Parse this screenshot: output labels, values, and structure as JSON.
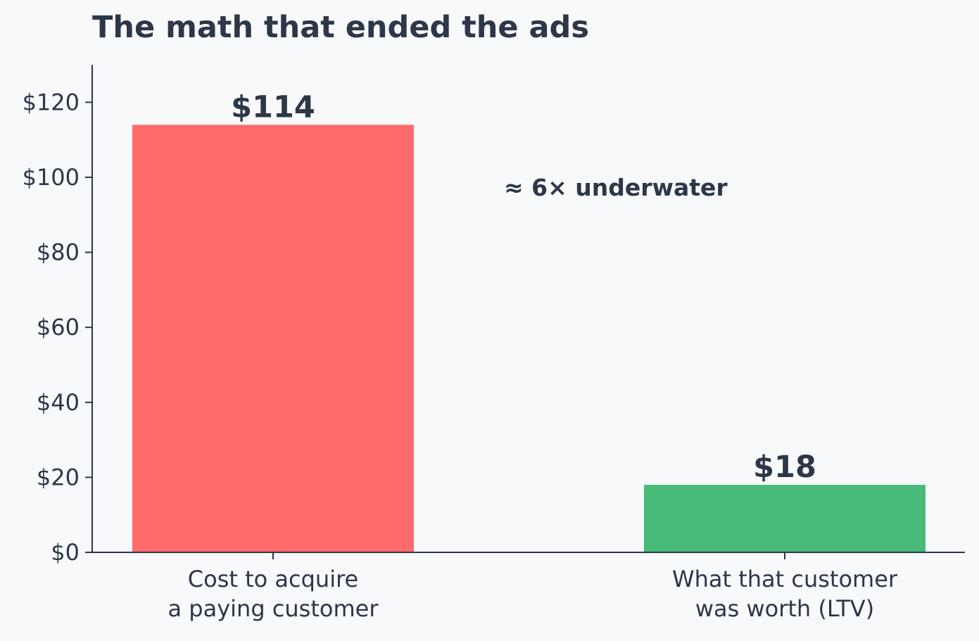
{
  "chart_data": {
    "type": "bar",
    "title": "The math that ended the ads",
    "categories": [
      [
        "Cost to acquire",
        "a paying customer"
      ],
      [
        "What that customer",
        "was worth (LTV)"
      ]
    ],
    "values": [
      114,
      18
    ],
    "value_labels": [
      "$114",
      "$18"
    ],
    "bar_colors": [
      "#ff6b6b",
      "#48bb78"
    ],
    "ylim": [
      0,
      130
    ],
    "yticks": [
      0,
      20,
      40,
      60,
      80,
      100,
      120
    ],
    "ytick_labels": [
      "$0",
      "$20",
      "$40",
      "$60",
      "$80",
      "$100",
      "$120"
    ],
    "annotation": "≈ 6× underwater",
    "xlabel": "",
    "ylabel": "",
    "grid": false,
    "legend": "none"
  }
}
